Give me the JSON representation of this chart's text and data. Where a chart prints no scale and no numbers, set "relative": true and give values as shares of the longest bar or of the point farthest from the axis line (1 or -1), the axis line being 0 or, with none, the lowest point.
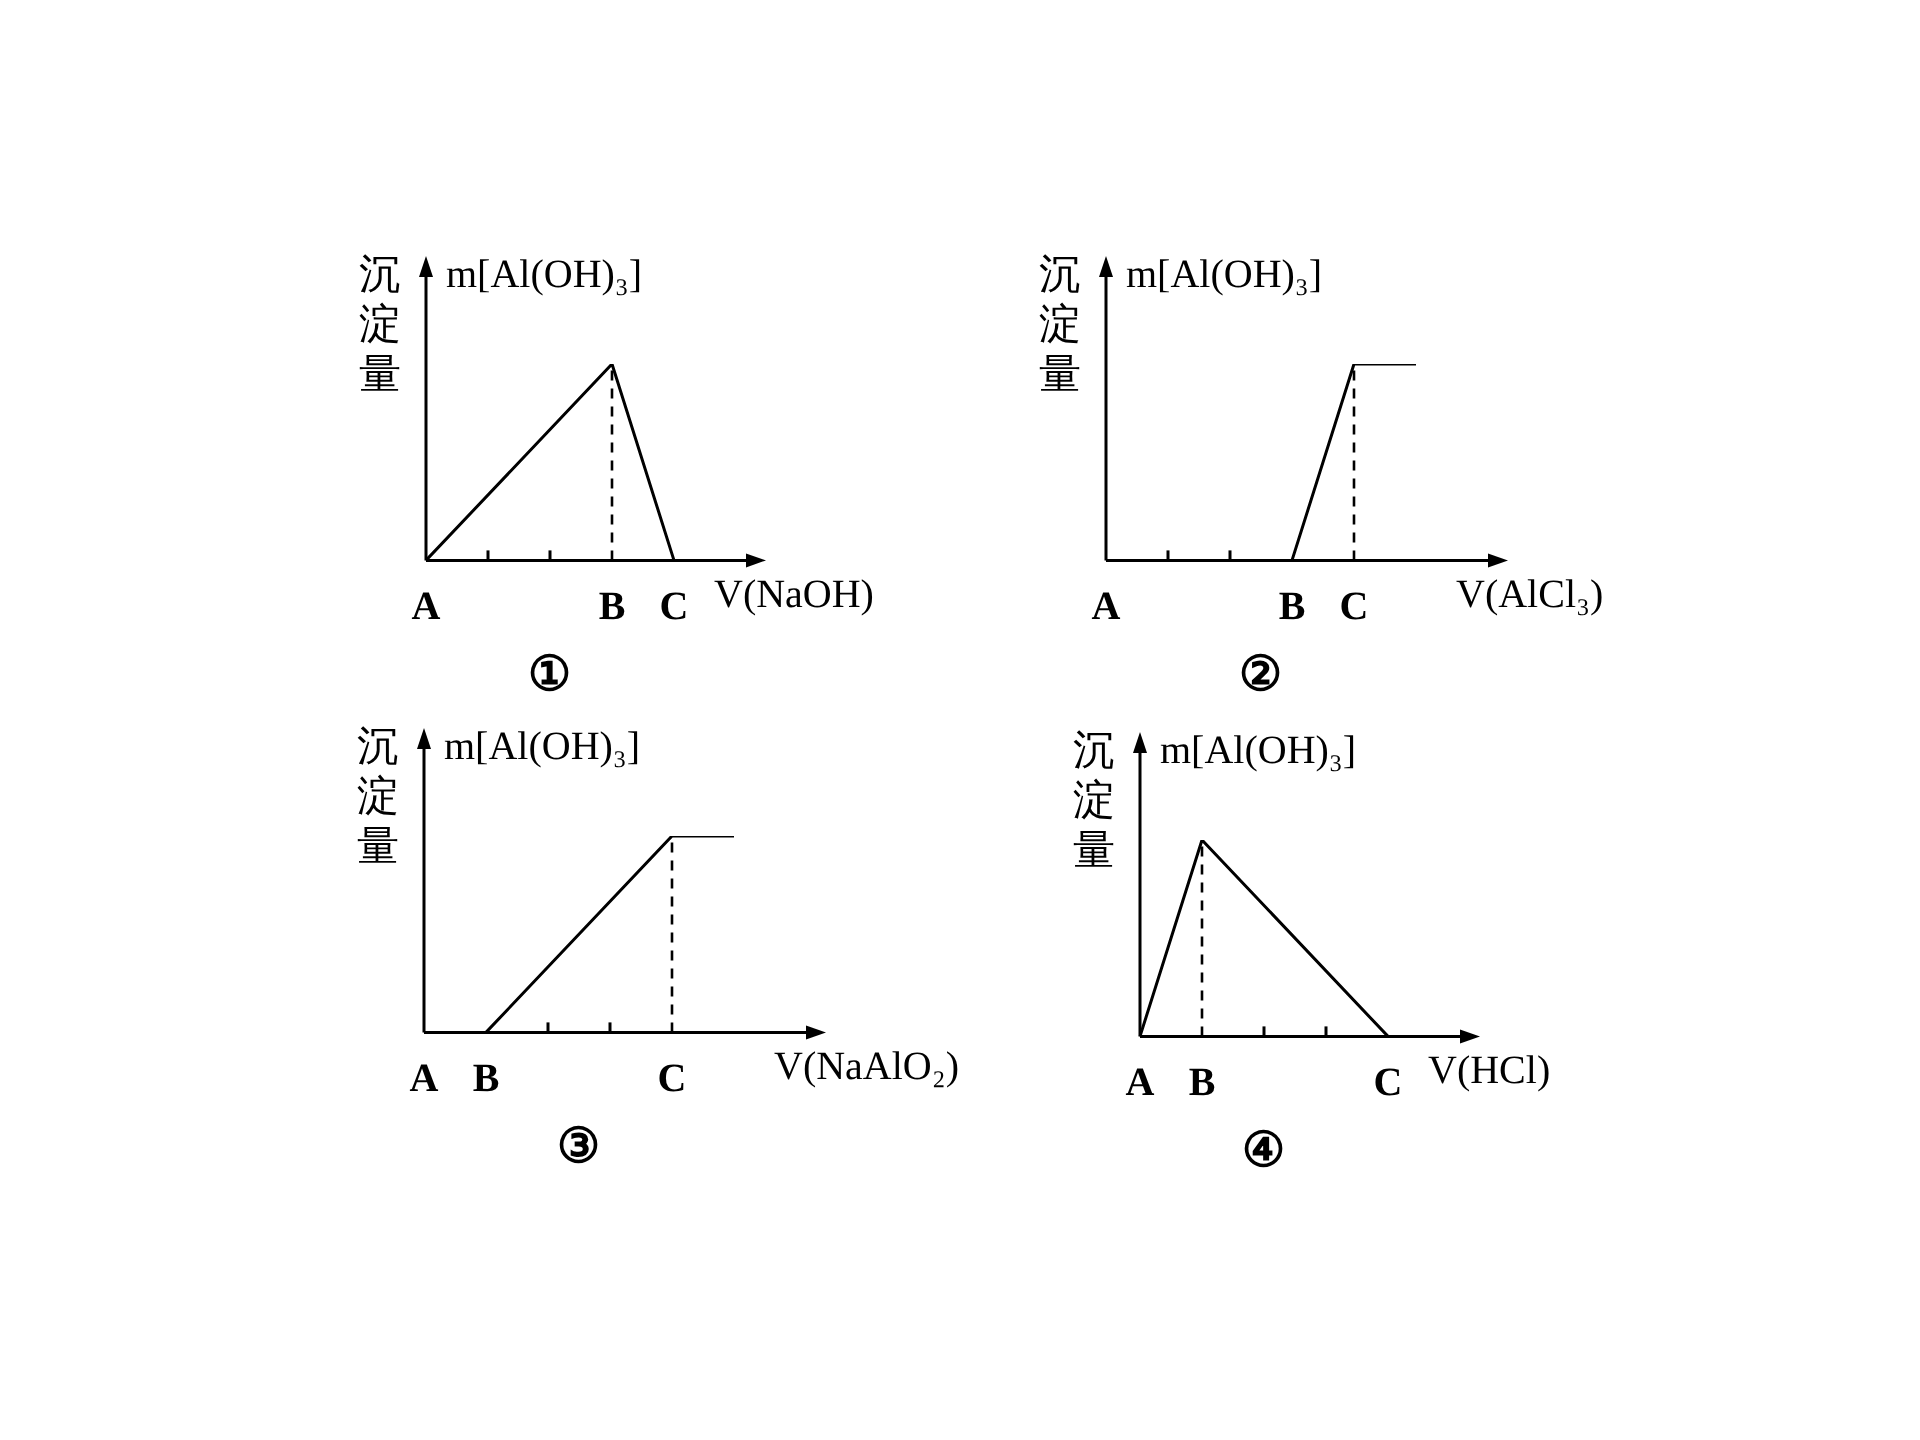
{
  "chart_data": [
    {
      "type": "line",
      "title": "①",
      "xlabel": "V(NaOH)",
      "ylabel": "沉淀量",
      "annotations": [
        "m[Al(OH)₃]"
      ],
      "relative": true,
      "categories": [
        "A",
        null,
        null,
        "B",
        "C"
      ],
      "series": [
        {
          "color": "#000000",
          "values": [
            0,
            null,
            null,
            1,
            0
          ]
        }
      ],
      "ref_lines": [
        {
          "axis": "x",
          "value": "B",
          "line_style": "dashed"
        }
      ]
    },
    {
      "type": "line",
      "title": "②",
      "xlabel": "V(AlCl₃)",
      "ylabel": "沉淀量",
      "annotations": [
        "m[Al(OH)₃]"
      ],
      "relative": true,
      "categories": [
        "A",
        null,
        null,
        "B",
        "C",
        null
      ],
      "series": [
        {
          "color": "#000000",
          "values": [
            null,
            null,
            null,
            0,
            1,
            1
          ]
        }
      ],
      "ref_lines": [
        {
          "axis": "x",
          "value": "C",
          "line_style": "dashed"
        }
      ]
    },
    {
      "type": "line",
      "title": "③",
      "xlabel": "V(NaAlO₂)",
      "ylabel": "沉淀量",
      "annotations": [
        "m[Al(OH)₃]"
      ],
      "relative": true,
      "categories": [
        "A",
        "B",
        null,
        null,
        "C",
        null
      ],
      "series": [
        {
          "color": "#000000",
          "values": [
            null,
            0,
            null,
            null,
            1,
            1
          ]
        }
      ],
      "ref_lines": [
        {
          "axis": "x",
          "value": "C",
          "line_style": "dashed"
        }
      ]
    },
    {
      "type": "line",
      "title": "④",
      "xlabel": "V(HCl)",
      "ylabel": "沉淀量",
      "annotations": [
        "m[Al(OH)₃]"
      ],
      "relative": true,
      "categories": [
        "A",
        "B",
        null,
        null,
        "C"
      ],
      "series": [
        {
          "color": "#000000",
          "values": [
            0,
            1,
            null,
            null,
            0
          ]
        }
      ],
      "ref_lines": [
        {
          "axis": "x",
          "value": "B",
          "line_style": "dashed"
        }
      ]
    }
  ]
}
